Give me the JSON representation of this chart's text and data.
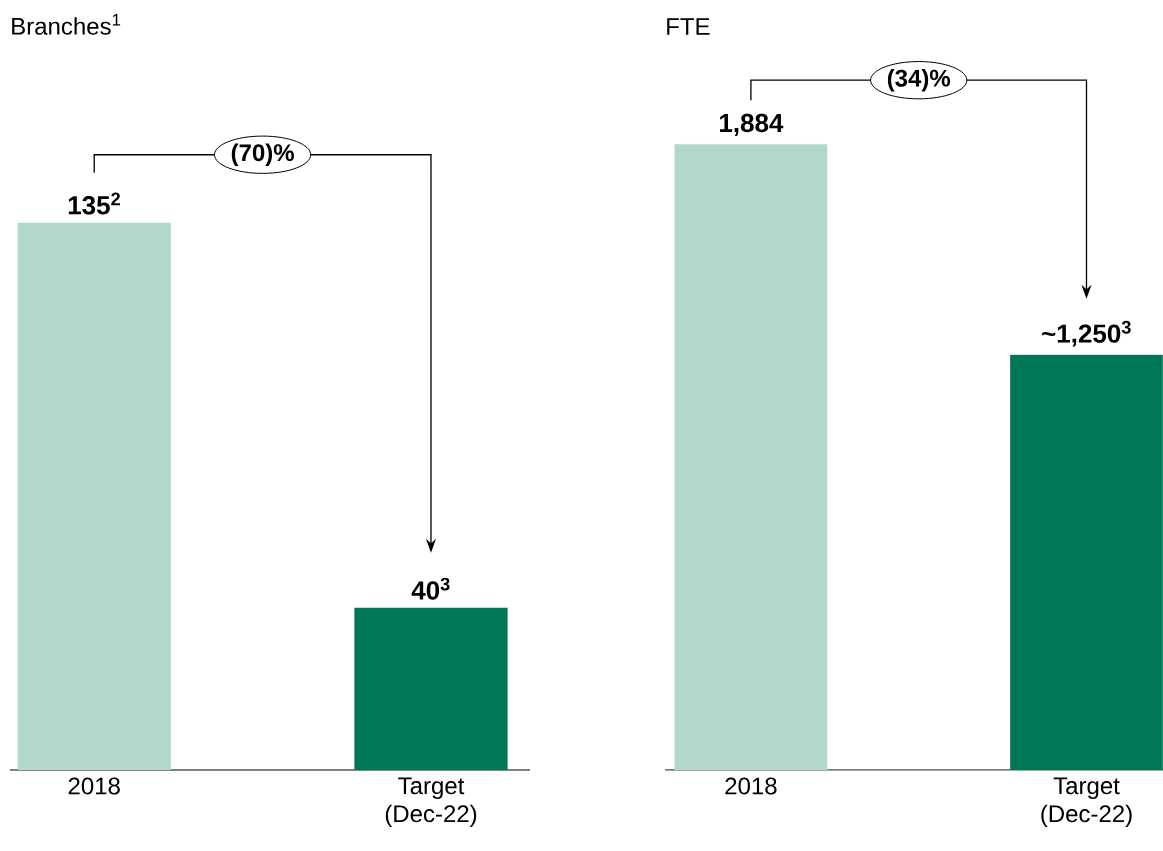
{
  "chart_data": [
    {
      "type": "bar",
      "title": "Branches$^{1}$",
      "categories": [
        "2018",
        "Target (Dec-22)"
      ],
      "values": [
        135,
        40
      ],
      "colors": [
        "#b2d8cc",
        "#007858"
      ],
      "value_labels": [
        "135$^{2}$",
        "40$^{3}$"
      ],
      "annotations": [
        "(70)%"
      ]
    },
    {
      "type": "bar",
      "title": "FTE",
      "categories": [
        "2018",
        "Target (Dec-22)"
      ],
      "values": [
        1884,
        1250
      ],
      "colors": [
        "#b2d8cc",
        "#007858"
      ],
      "value_labels": [
        "1,884",
        "~1,250$^{3}$"
      ],
      "annotations": [
        "(34)%"
      ]
    }
  ]
}
